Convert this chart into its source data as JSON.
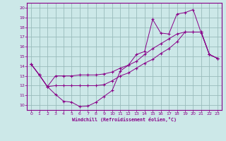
{
  "bg_color": "#cce8e8",
  "line_color": "#880088",
  "grid_color": "#99bbbb",
  "xlabel": "Windchill (Refroidissement éolien,°C)",
  "xlim": [
    -0.5,
    23.5
  ],
  "ylim": [
    9.5,
    20.5
  ],
  "xticks": [
    0,
    1,
    2,
    3,
    4,
    5,
    6,
    7,
    8,
    9,
    10,
    11,
    12,
    13,
    14,
    15,
    16,
    17,
    18,
    19,
    20,
    21,
    22,
    23
  ],
  "yticks": [
    10,
    11,
    12,
    13,
    14,
    15,
    16,
    17,
    18,
    19,
    20
  ],
  "series": [
    {
      "x": [
        0,
        1,
        2,
        3,
        4,
        5,
        6,
        7,
        8,
        9,
        10,
        11,
        12,
        13,
        14,
        15,
        16,
        17,
        18,
        19,
        20,
        21,
        22,
        23
      ],
      "y": [
        14.2,
        13.1,
        11.9,
        11.1,
        10.4,
        10.3,
        9.85,
        9.9,
        10.3,
        10.9,
        11.5,
        13.5,
        14.1,
        15.2,
        15.5,
        18.8,
        17.4,
        17.3,
        19.35,
        19.5,
        19.8,
        17.4,
        15.2,
        14.8
      ]
    },
    {
      "x": [
        0,
        1,
        2,
        3,
        4,
        5,
        6,
        7,
        8,
        9,
        10,
        11,
        12,
        13,
        14,
        15,
        16,
        17,
        18,
        19,
        20,
        21,
        22,
        23
      ],
      "y": [
        14.2,
        13.1,
        11.9,
        13.0,
        13.0,
        13.0,
        13.1,
        13.1,
        13.1,
        13.2,
        13.4,
        13.8,
        14.1,
        14.5,
        15.2,
        15.8,
        16.3,
        16.8,
        17.3,
        17.5,
        17.5,
        17.5,
        15.2,
        14.8
      ]
    },
    {
      "x": [
        0,
        1,
        2,
        3,
        4,
        5,
        6,
        7,
        8,
        9,
        10,
        11,
        12,
        13,
        14,
        15,
        16,
        17,
        18,
        19,
        20,
        21,
        22,
        23
      ],
      "y": [
        14.2,
        13.1,
        11.9,
        12.0,
        12.0,
        12.0,
        12.0,
        12.0,
        12.0,
        12.1,
        12.5,
        13.0,
        13.3,
        13.8,
        14.3,
        14.7,
        15.3,
        15.8,
        16.5,
        17.5,
        17.5,
        17.5,
        15.2,
        14.8
      ]
    }
  ]
}
